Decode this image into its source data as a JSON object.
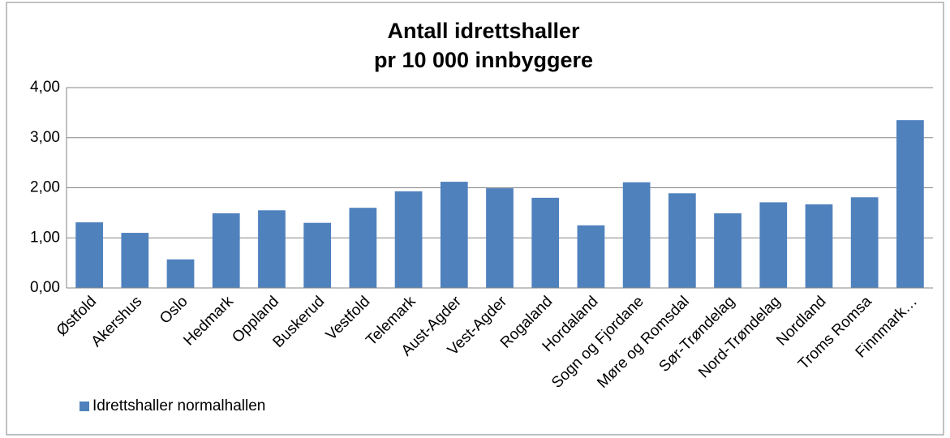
{
  "chart_data": {
    "type": "bar",
    "title": [
      "Antall idrettshaller",
      "pr 10 000 innbyggere"
    ],
    "categories": [
      "Østfold",
      "Akershus",
      "Oslo",
      "Hedmark",
      "Oppland",
      "Buskerud",
      "Vestfold",
      "Telemark",
      "Aust-Agder",
      "Vest-Agder",
      "Rogaland",
      "Hordaland",
      "Sogn og Fjordane",
      "Møre og Romsdal",
      "Sør-Trøndelag",
      "Nord-Trøndelag",
      "Nordland",
      "Troms Romsa",
      "Finnmark…"
    ],
    "series": [
      {
        "name": "Idrettshaller normalhallen",
        "color": "#4f81bd",
        "values": [
          1.31,
          1.1,
          0.57,
          1.49,
          1.55,
          1.3,
          1.6,
          1.93,
          2.12,
          1.99,
          1.8,
          1.25,
          2.11,
          1.89,
          1.49,
          1.71,
          1.67,
          1.81,
          3.35
        ]
      }
    ],
    "ylim": [
      0,
      4
    ],
    "yticks": [
      {
        "value": 0,
        "label": "0,00"
      },
      {
        "value": 1,
        "label": "1,00"
      },
      {
        "value": 2,
        "label": "2,00"
      },
      {
        "value": 3,
        "label": "3,00"
      },
      {
        "value": 4,
        "label": "4,00"
      }
    ],
    "grid": true,
    "legend": "bottom-left"
  }
}
